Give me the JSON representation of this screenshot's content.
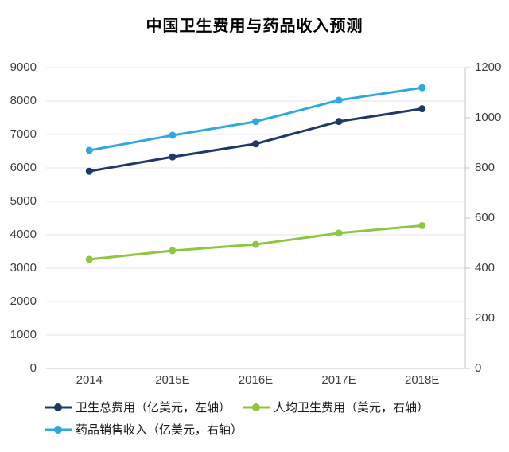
{
  "title": "中国卫生费用与药品收入预测",
  "chart_data": {
    "type": "line",
    "title": "中国卫生费用与药品收入预测",
    "categories": [
      "2014",
      "2015E",
      "2016E",
      "2017E",
      "2018E"
    ],
    "series": [
      {
        "name": "卫生总费用（亿美元，左轴）",
        "axis": "left",
        "color": "#1F3864",
        "values": [
          5900,
          6330,
          6720,
          7390,
          7770
        ]
      },
      {
        "name": "人均卫生费用（美元，右轴）",
        "axis": "right",
        "color": "#8DC63F",
        "values": [
          435,
          470,
          495,
          540,
          570
        ]
      },
      {
        "name": "药品销售收入（亿美元，右轴）",
        "axis": "right",
        "color": "#2EA9DC",
        "values": [
          870,
          930,
          985,
          1070,
          1120
        ]
      }
    ],
    "left_axis": {
      "min": 0,
      "max": 9000,
      "step": 1000,
      "ticks": [
        "9000",
        "8000",
        "7000",
        "6000",
        "5000",
        "4000",
        "3000",
        "2000",
        "1000",
        "0"
      ]
    },
    "right_axis": {
      "min": 0,
      "max": 1200,
      "step": 200,
      "ticks": [
        "1200",
        "1000",
        "800",
        "600",
        "400",
        "200",
        "0"
      ]
    },
    "grid": true,
    "legend_position": "bottom",
    "gridline_color": "#E4E4E4",
    "axis_line_color": "#C4C4C4",
    "tick_text_color": "#3F3F3F"
  }
}
